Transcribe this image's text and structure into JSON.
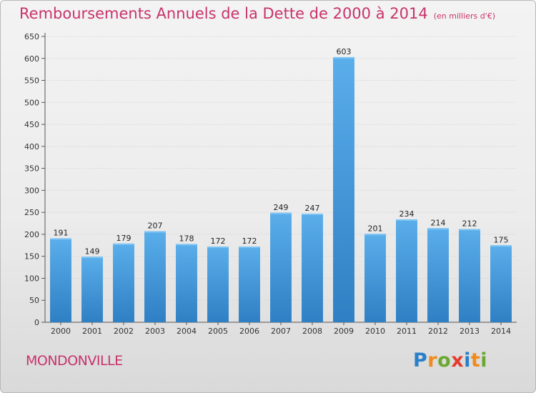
{
  "title": "Remboursements Annuels de la Dette de 2000 à 2014",
  "unit": "(en milliers d'€)",
  "commune": "MONDONVILLE",
  "logo": {
    "letters": [
      "P",
      "r",
      "o",
      "x",
      "i",
      "t",
      "i"
    ],
    "colors": [
      "#2a7fc9",
      "#f08a1c",
      "#6aa832",
      "#e53b2c",
      "#2a7fc9",
      "#f08a1c",
      "#6aa832"
    ]
  },
  "chart_data": {
    "type": "bar",
    "categories": [
      "2000",
      "2001",
      "2002",
      "2003",
      "2004",
      "2005",
      "2006",
      "2007",
      "2008",
      "2009",
      "2010",
      "2011",
      "2012",
      "2013",
      "2014"
    ],
    "values": [
      191,
      149,
      179,
      207,
      178,
      172,
      172,
      249,
      247,
      603,
      201,
      234,
      214,
      212,
      175
    ],
    "ylim": [
      0,
      650
    ],
    "yticks": [
      0,
      50,
      100,
      150,
      200,
      250,
      300,
      350,
      400,
      450,
      500,
      550,
      600,
      650
    ],
    "grid": true,
    "colors": {
      "bar_top": "#5aaeea",
      "bar_bottom": "#2f7fc4",
      "grid": "#cfcfcf"
    }
  }
}
